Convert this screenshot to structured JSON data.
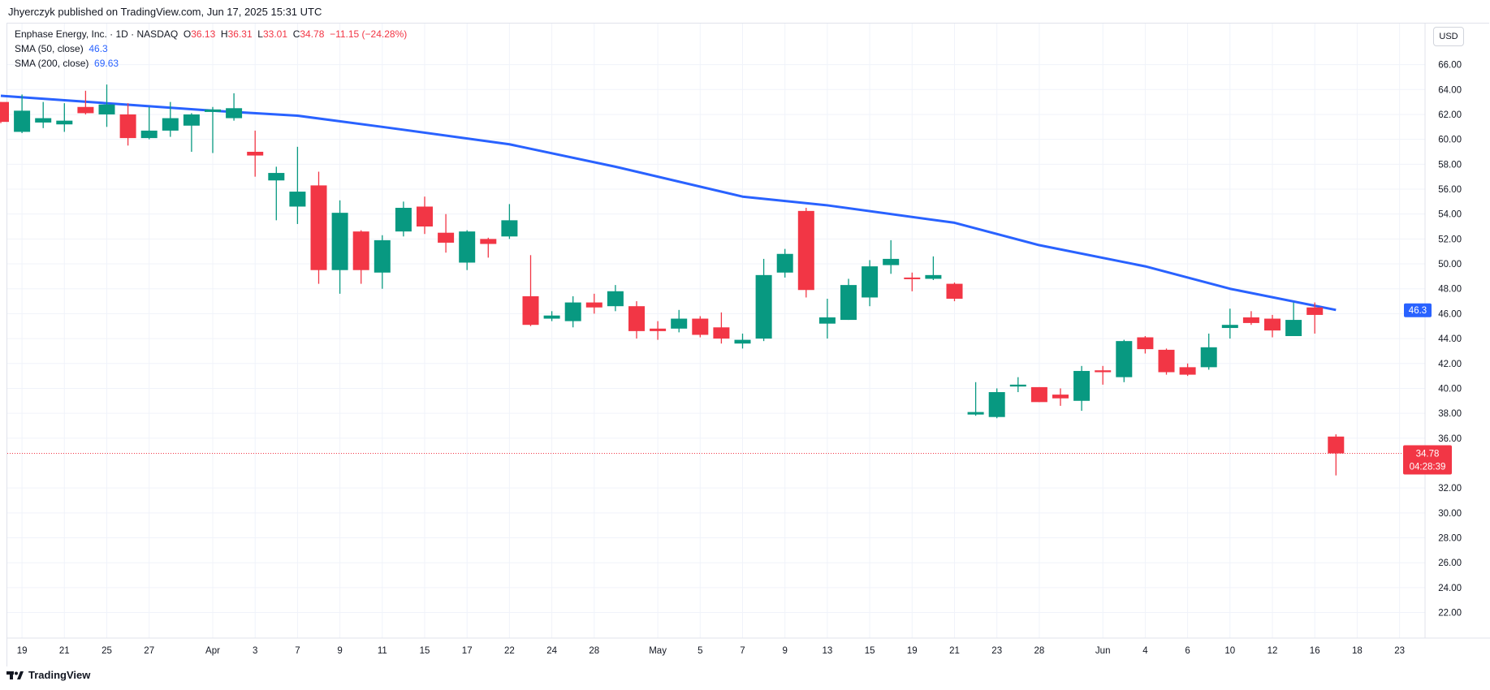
{
  "publisher_line": "Jhyerczyk published on TradingView.com, Jun 17, 2025 15:31 UTC",
  "legend": {
    "symbol": "Enphase Energy, Inc. · 1D · NASDAQ",
    "o_label": "O",
    "o": "36.13",
    "h_label": "H",
    "h": "36.31",
    "l_label": "L",
    "l": "33.01",
    "c_label": "C",
    "c": "34.78",
    "change": "−11.15 (−24.28%)",
    "sma50_label": "SMA (50, close)",
    "sma50": "46.3",
    "sma200_label": "SMA (200, close)",
    "sma200": "69.63"
  },
  "currency": "USD",
  "last_price_label": "34.78",
  "countdown": "04:28:39",
  "sma_label": "46.3",
  "brand": "TradingView",
  "colors": {
    "up": "#089981",
    "down": "#F23645",
    "sma": "#2962FF"
  },
  "chart_data": {
    "type": "candlestick",
    "title": "Enphase Energy, Inc. · 1D · NASDAQ",
    "ylim": [
      20.5,
      67
    ],
    "y_ticks": [
      "66.00",
      "64.00",
      "62.00",
      "60.00",
      "58.00",
      "56.00",
      "54.00",
      "52.00",
      "50.00",
      "48.00",
      "46.00",
      "44.00",
      "42.00",
      "40.00",
      "38.00",
      "36.00",
      "32.00",
      "30.00",
      "28.00",
      "26.00",
      "24.00",
      "22.00"
    ],
    "x_ticks": [
      {
        "label": "19",
        "bar": 1
      },
      {
        "label": "21",
        "bar": 3
      },
      {
        "label": "25",
        "bar": 5
      },
      {
        "label": "27",
        "bar": 7
      },
      {
        "label": "Apr",
        "bar": 10
      },
      {
        "label": "3",
        "bar": 12
      },
      {
        "label": "7",
        "bar": 14
      },
      {
        "label": "9",
        "bar": 16
      },
      {
        "label": "11",
        "bar": 18
      },
      {
        "label": "15",
        "bar": 20
      },
      {
        "label": "17",
        "bar": 22
      },
      {
        "label": "22",
        "bar": 24
      },
      {
        "label": "24",
        "bar": 26
      },
      {
        "label": "28",
        "bar": 28
      },
      {
        "label": "May",
        "bar": 31
      },
      {
        "label": "5",
        "bar": 33
      },
      {
        "label": "7",
        "bar": 35
      },
      {
        "label": "9",
        "bar": 37
      },
      {
        "label": "13",
        "bar": 39
      },
      {
        "label": "15",
        "bar": 41
      },
      {
        "label": "19",
        "bar": 43
      },
      {
        "label": "21",
        "bar": 45
      },
      {
        "label": "23",
        "bar": 47
      },
      {
        "label": "28",
        "bar": 49
      },
      {
        "label": "Jun",
        "bar": 52
      },
      {
        "label": "4",
        "bar": 54
      },
      {
        "label": "6",
        "bar": 56
      },
      {
        "label": "10",
        "bar": 58
      },
      {
        "label": "12",
        "bar": 60
      },
      {
        "label": "16",
        "bar": 62
      },
      {
        "label": "18",
        "bar": 64
      },
      {
        "label": "23",
        "bar": 66
      }
    ],
    "candles": [
      [
        "Mar 18",
        63.0,
        63.0,
        61.3,
        61.4
      ],
      [
        "Mar 19",
        60.6,
        63.6,
        60.5,
        62.3
      ],
      [
        "Mar 20",
        61.35,
        63.0,
        60.9,
        61.7
      ],
      [
        "Mar 21",
        61.2,
        62.9,
        60.6,
        61.5
      ],
      [
        "Mar 24",
        62.6,
        63.9,
        62.0,
        62.1
      ],
      [
        "Mar 25",
        62.0,
        64.4,
        61.0,
        62.8
      ],
      [
        "Mar 26",
        62.0,
        62.9,
        59.5,
        60.1
      ],
      [
        "Mar 27",
        60.1,
        62.6,
        60.0,
        60.7
      ],
      [
        "Mar 28",
        60.7,
        63.0,
        60.2,
        61.7
      ],
      [
        "Mar 31",
        61.1,
        62.1,
        59.0,
        62.0
      ],
      [
        "Apr 1",
        62.2,
        62.6,
        58.9,
        62.4
      ],
      [
        "Apr 2",
        61.7,
        63.7,
        61.5,
        62.5
      ],
      [
        "Apr 3",
        59.0,
        60.7,
        57.0,
        58.7
      ],
      [
        "Apr 4",
        56.7,
        57.8,
        53.5,
        57.3
      ],
      [
        "Apr 7",
        54.6,
        59.4,
        53.2,
        55.8
      ],
      [
        "Apr 8",
        56.3,
        57.4,
        48.4,
        49.5
      ],
      [
        "Apr 9",
        49.5,
        55.1,
        47.6,
        54.1
      ],
      [
        "Apr 10",
        52.6,
        52.7,
        48.4,
        49.5
      ],
      [
        "Apr 11",
        49.3,
        52.3,
        48.0,
        51.9
      ],
      [
        "Apr 14",
        52.6,
        55.0,
        52.2,
        54.5
      ],
      [
        "Apr 15",
        54.6,
        55.4,
        52.4,
        53.0
      ],
      [
        "Apr 16",
        52.5,
        54.0,
        50.9,
        51.7
      ],
      [
        "Apr 17",
        50.1,
        52.7,
        49.5,
        52.6
      ],
      [
        "Apr 21",
        52.0,
        52.1,
        50.5,
        51.6
      ],
      [
        "Apr 22",
        52.2,
        54.8,
        52.0,
        53.5
      ],
      [
        "Apr 23",
        47.4,
        50.7,
        45.0,
        45.1
      ],
      [
        "Apr 24",
        45.6,
        46.2,
        45.4,
        45.85
      ],
      [
        "Apr 25",
        45.4,
        47.4,
        44.9,
        46.9
      ],
      [
        "Apr 28",
        46.9,
        47.6,
        46.0,
        46.5
      ],
      [
        "Apr 29",
        46.6,
        48.3,
        46.2,
        47.8
      ],
      [
        "Apr 30",
        46.6,
        47.0,
        44.0,
        44.6
      ],
      [
        "May 1",
        44.8,
        45.4,
        43.9,
        44.6
      ],
      [
        "May 2",
        44.8,
        46.3,
        44.5,
        45.6
      ],
      [
        "May 5",
        45.6,
        45.8,
        44.1,
        44.3
      ],
      [
        "May 6",
        44.9,
        46.1,
        43.6,
        44.0
      ],
      [
        "May 7",
        43.6,
        44.4,
        43.2,
        43.9
      ],
      [
        "May 8",
        44.0,
        50.4,
        43.8,
        49.1
      ],
      [
        "May 9",
        49.3,
        51.2,
        48.9,
        50.8
      ],
      [
        "May 12",
        54.25,
        54.5,
        47.3,
        47.9
      ],
      [
        "May 13",
        45.2,
        47.2,
        44.0,
        45.7
      ],
      [
        "May 14",
        45.5,
        48.8,
        45.5,
        48.3
      ],
      [
        "May 15",
        47.3,
        50.3,
        46.6,
        49.8
      ],
      [
        "May 16",
        49.9,
        51.9,
        49.2,
        50.4
      ],
      [
        "May 19",
        48.9,
        49.3,
        47.8,
        48.8
      ],
      [
        "May 20",
        48.8,
        50.6,
        48.7,
        49.1
      ],
      [
        "May 21",
        48.4,
        48.5,
        47.0,
        47.2
      ],
      [
        "May 22",
        37.9,
        40.5,
        37.8,
        38.1
      ],
      [
        "May 23",
        37.7,
        40.0,
        37.6,
        39.7
      ],
      [
        "May 27",
        40.15,
        40.9,
        39.7,
        40.3
      ],
      [
        "May 28",
        40.1,
        40.1,
        38.9,
        38.9
      ],
      [
        "May 29",
        39.5,
        40.0,
        38.6,
        39.2
      ],
      [
        "May 30",
        39.0,
        41.8,
        38.2,
        41.4
      ],
      [
        "Jun 2",
        41.45,
        41.8,
        40.3,
        41.3
      ],
      [
        "Jun 3",
        40.9,
        43.9,
        40.5,
        43.8
      ],
      [
        "Jun 4",
        44.1,
        44.2,
        42.8,
        43.15
      ],
      [
        "Jun 5",
        43.1,
        43.2,
        41.1,
        41.3
      ],
      [
        "Jun 6",
        41.7,
        42.0,
        41.0,
        41.1
      ],
      [
        "Jun 9",
        41.7,
        44.4,
        41.5,
        43.3
      ],
      [
        "Jun 10",
        44.85,
        46.4,
        44.0,
        45.1
      ],
      [
        "Jun 11",
        45.7,
        46.2,
        45.1,
        45.25
      ],
      [
        "Jun 12",
        45.6,
        45.9,
        44.1,
        44.65
      ],
      [
        "Jun 13",
        44.2,
        46.9,
        44.2,
        45.5
      ],
      [
        "Jun 16",
        46.5,
        46.9,
        44.4,
        45.9
      ],
      [
        "Jun 17",
        36.13,
        36.31,
        33.01,
        34.78
      ]
    ],
    "sma50_points": [
      [
        0,
        63.5
      ],
      [
        10,
        62.3
      ],
      [
        14,
        61.9
      ],
      [
        18,
        61.0
      ],
      [
        24,
        59.6
      ],
      [
        29,
        57.8
      ],
      [
        35,
        55.4
      ],
      [
        39,
        54.7
      ],
      [
        45,
        53.3
      ],
      [
        49,
        51.5
      ],
      [
        54,
        49.8
      ],
      [
        58,
        48.0
      ],
      [
        63,
        46.3
      ]
    ],
    "last_price": 34.78
  }
}
